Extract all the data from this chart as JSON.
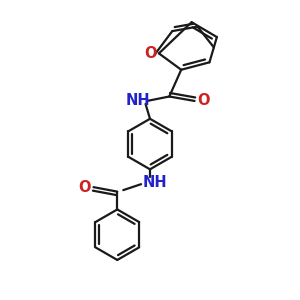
{
  "bg_color": "#ffffff",
  "line_color": "#1a1a1a",
  "bond_width": 1.6,
  "dbo": 0.012,
  "figsize": [
    3.0,
    3.0
  ],
  "dpi": 100,
  "NH_color": "#2222cc",
  "O_color": "#cc2222",
  "fontsize": 10.5,
  "xlim": [
    0,
    1
  ],
  "ylim": [
    0,
    1
  ]
}
